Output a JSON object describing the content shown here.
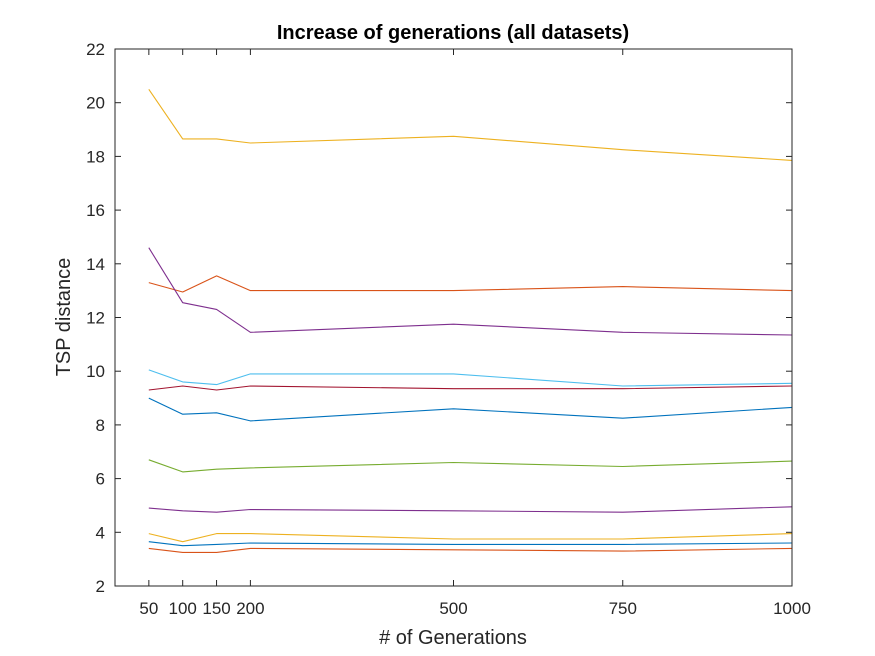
{
  "chart_data": {
    "type": "line",
    "title": "Increase of generations (all datasets)",
    "xlabel": "# of Generations",
    "ylabel": "TSP distance",
    "xlim": [
      0,
      1000
    ],
    "ylim": [
      2,
      22
    ],
    "x": [
      50,
      100,
      150,
      200,
      500,
      750,
      1000
    ],
    "xticks": [
      50,
      100,
      150,
      200,
      500,
      750,
      1000
    ],
    "xtick_labels": [
      "50",
      "100",
      "150",
      "200",
      "500",
      "750",
      "1000"
    ],
    "yticks": [
      2,
      4,
      6,
      8,
      10,
      12,
      14,
      16,
      18,
      20,
      22
    ],
    "grid": false,
    "legend": false,
    "series": [
      {
        "color": "#EDB120",
        "values": [
          20.5,
          18.65,
          18.65,
          18.5,
          18.75,
          18.25,
          17.85
        ]
      },
      {
        "color": "#D95319",
        "values": [
          13.3,
          12.95,
          13.55,
          13.0,
          13.0,
          13.15,
          13.0
        ]
      },
      {
        "color": "#7E2F8E",
        "values": [
          14.6,
          12.55,
          12.3,
          11.45,
          11.75,
          11.45,
          11.35
        ]
      },
      {
        "color": "#4DBEEE",
        "values": [
          10.05,
          9.6,
          9.5,
          9.9,
          9.9,
          9.45,
          9.55
        ]
      },
      {
        "color": "#A2142F",
        "values": [
          9.3,
          9.45,
          9.3,
          9.45,
          9.35,
          9.35,
          9.45
        ]
      },
      {
        "color": "#0072BD",
        "values": [
          9.0,
          8.4,
          8.45,
          8.15,
          8.6,
          8.25,
          8.65
        ]
      },
      {
        "color": "#77AC30",
        "values": [
          6.7,
          6.25,
          6.35,
          6.4,
          6.6,
          6.45,
          6.65
        ]
      },
      {
        "color": "#7E2F8E",
        "values": [
          4.9,
          4.8,
          4.75,
          4.85,
          4.8,
          4.75,
          4.95
        ]
      },
      {
        "color": "#EDB120",
        "values": [
          3.95,
          3.65,
          3.95,
          3.95,
          3.75,
          3.75,
          3.95
        ]
      },
      {
        "color": "#0072BD",
        "values": [
          3.65,
          3.5,
          3.55,
          3.6,
          3.55,
          3.55,
          3.6
        ]
      },
      {
        "color": "#D95319",
        "values": [
          3.4,
          3.25,
          3.25,
          3.4,
          3.35,
          3.3,
          3.4
        ]
      }
    ]
  }
}
